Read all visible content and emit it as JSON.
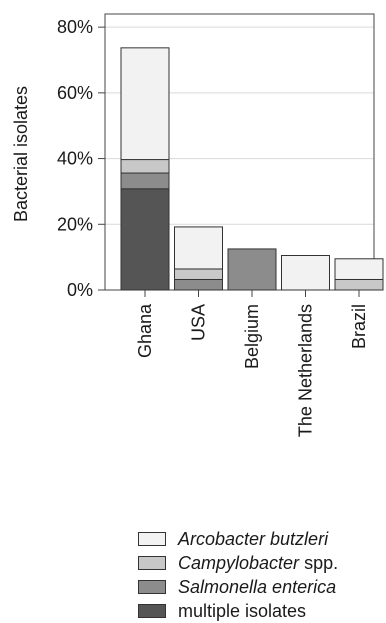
{
  "chart_data": {
    "type": "bar",
    "stacked": true,
    "ylabel": "Bacterial isolates",
    "ylim": [
      0,
      84
    ],
    "yticks": [
      0,
      20,
      40,
      60,
      80
    ],
    "ytick_labels": [
      "0%",
      "20%",
      "40%",
      "60%",
      "80%"
    ],
    "categories": [
      "Ghana",
      "USA",
      "Belgium",
      "The Netherlands",
      "Brazil"
    ],
    "series": [
      {
        "name": "multiple isolates",
        "color": "#555555",
        "values": [
          30.8,
          0,
          0,
          0,
          0
        ]
      },
      {
        "name": "Salmonella enterica",
        "color": "#8c8c8c",
        "values": [
          4.8,
          3.2,
          12.5,
          0,
          0
        ]
      },
      {
        "name": "Campylobacter spp.",
        "color": "#c8c8c8",
        "values": [
          4.1,
          3.2,
          0,
          0,
          3.2
        ]
      },
      {
        "name": "Arcobacter butzleri",
        "color": "#f2f2f2",
        "values": [
          34.0,
          12.8,
          0,
          10.5,
          6.3
        ]
      }
    ],
    "legend": {
      "placement": "bottom",
      "items": [
        {
          "italic": "Arcobacter butzleri",
          "rest": "",
          "color": "#f2f2f2"
        },
        {
          "italic": "Campylobacter",
          "rest": " spp.",
          "color": "#c8c8c8"
        },
        {
          "italic": "Salmonella enterica",
          "rest": "",
          "color": "#8c8c8c"
        },
        {
          "italic": "",
          "rest": "multiple isolates",
          "color": "#555555"
        }
      ]
    },
    "grid": true
  }
}
